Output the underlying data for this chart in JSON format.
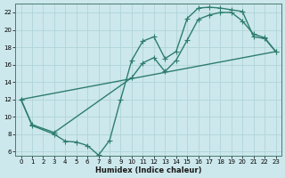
{
  "xlabel": "Humidex (Indice chaleur)",
  "color": "#2e7d6e",
  "background": "#cce8ec",
  "grid_color": "#b0d4d8",
  "xlim": [
    -0.5,
    23.5
  ],
  "ylim": [
    5.5,
    23
  ],
  "xticks": [
    0,
    1,
    2,
    3,
    4,
    5,
    6,
    7,
    8,
    9,
    10,
    11,
    12,
    13,
    14,
    15,
    16,
    17,
    18,
    19,
    20,
    21,
    22,
    23
  ],
  "yticks": [
    6,
    8,
    10,
    12,
    14,
    16,
    18,
    20,
    22
  ],
  "line1_x": [
    0,
    1,
    3,
    4,
    5,
    6,
    7,
    8,
    9,
    10,
    11,
    12,
    13,
    14,
    15,
    16,
    17,
    18,
    19,
    20,
    21,
    22,
    23
  ],
  "line1_y": [
    12,
    9,
    8,
    7.2,
    7.1,
    6.7,
    5.6,
    7.3,
    12,
    16.5,
    18.7,
    19.2,
    16.7,
    17.5,
    21.3,
    22.5,
    22.6,
    22.5,
    22.3,
    22.1,
    19.2,
    19.0,
    17.5
  ],
  "line2_x": [
    0,
    1,
    3,
    10,
    11,
    12,
    13,
    14,
    15,
    16,
    17,
    18,
    19,
    20,
    21,
    22,
    23
  ],
  "line2_y": [
    12,
    9.1,
    8.2,
    14.5,
    16.2,
    16.8,
    15.2,
    16.5,
    18.8,
    21.2,
    21.7,
    22.0,
    22.0,
    21.0,
    19.5,
    19.1,
    17.5
  ],
  "line3_x": [
    0,
    23
  ],
  "line3_y": [
    12,
    17.5
  ],
  "markersize": 3,
  "linewidth": 1.0
}
